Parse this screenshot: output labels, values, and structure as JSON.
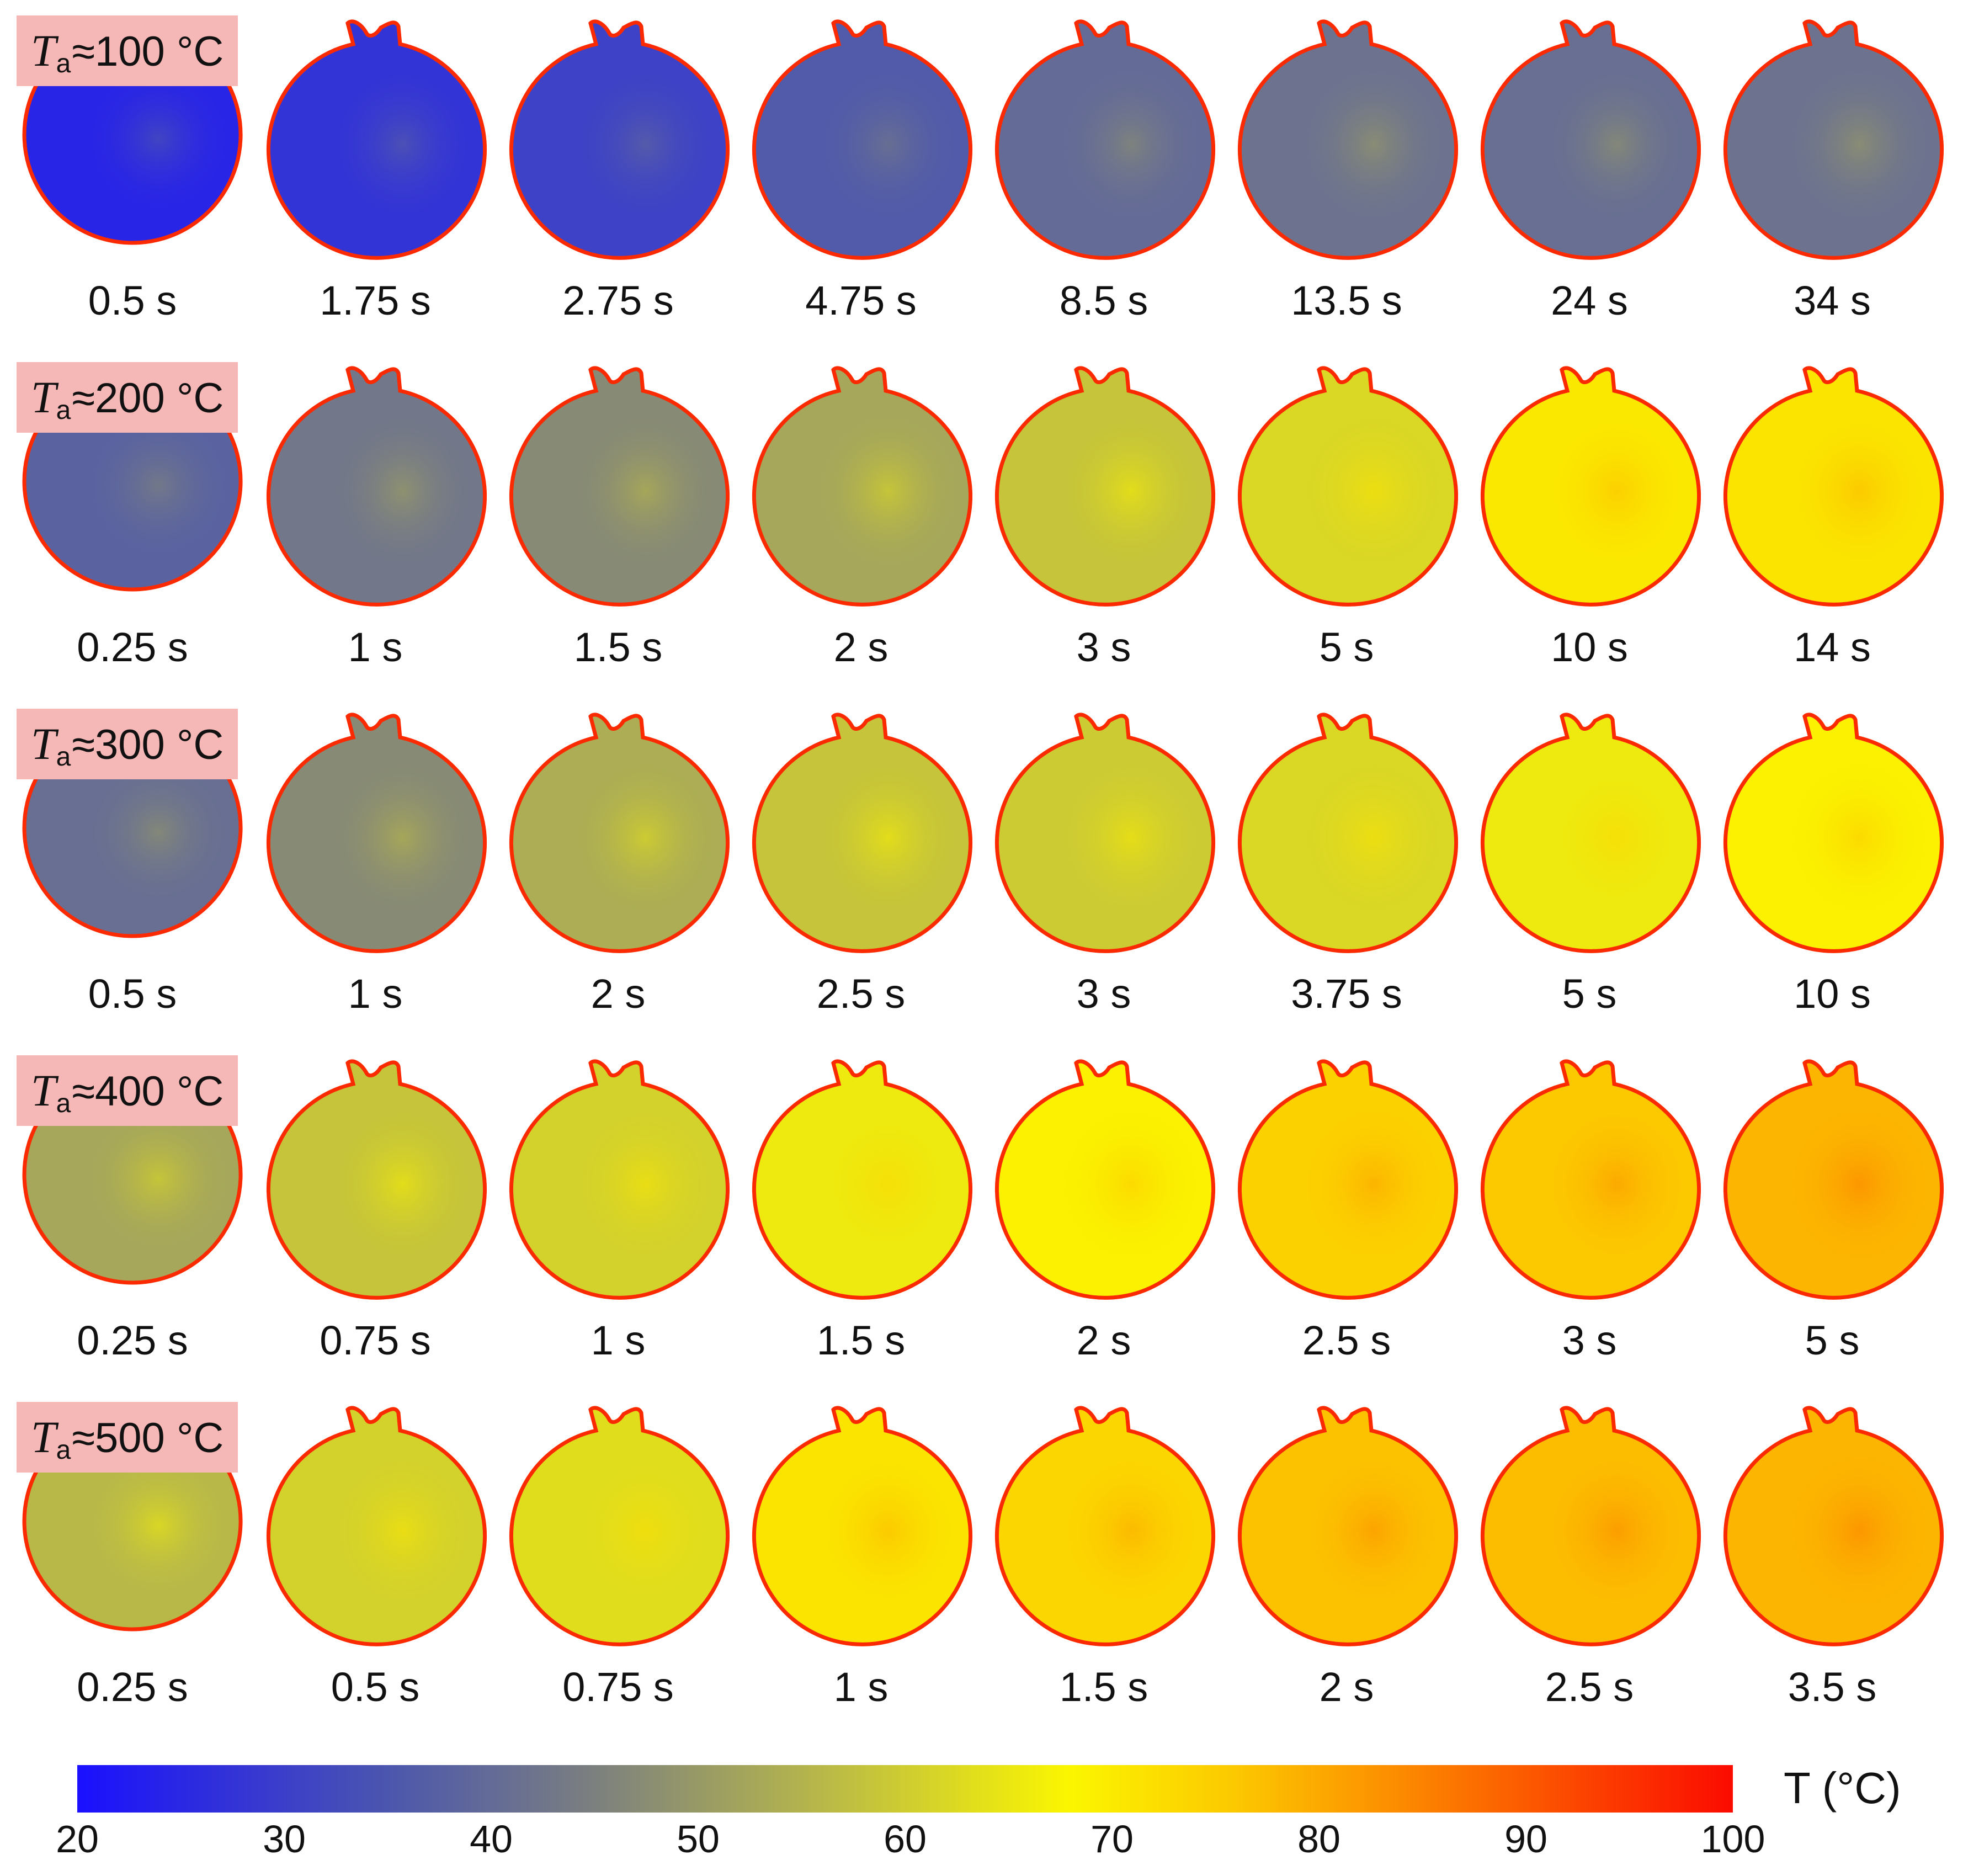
{
  "colors": {
    "c20": "#1a10ff",
    "c30": "#4c57ad",
    "c40": "#7b7f80",
    "c50": "#b8b849",
    "c60": "#fbf600",
    "c70": "#fcc800",
    "c80": "#fc8a00",
    "c90": "#fc4a00",
    "c100": "#fb0b00",
    "label_bg": "#f6b7b7"
  },
  "rows": [
    {
      "label_symbol": "T",
      "label_sub": "a",
      "label_rest": "≈100 °C",
      "frames": [
        {
          "time": "0.5 s",
          "temp": 23
        },
        {
          "time": "1.75 s",
          "temp": 25
        },
        {
          "time": "2.75 s",
          "temp": 27
        },
        {
          "time": "4.75 s",
          "temp": 31
        },
        {
          "time": "8.5 s",
          "temp": 35
        },
        {
          "time": "13.5 s",
          "temp": 37
        },
        {
          "time": "24 s",
          "temp": 36
        },
        {
          "time": "34 s",
          "temp": 37
        }
      ]
    },
    {
      "label_symbol": "T",
      "label_sub": "a",
      "label_rest": "≈200 °C",
      "frames": [
        {
          "time": "0.25 s",
          "temp": 33
        },
        {
          "time": "1 s",
          "temp": 38
        },
        {
          "time": "1.5 s",
          "temp": 42
        },
        {
          "time": "2 s",
          "temp": 47
        },
        {
          "time": "3 s",
          "temp": 52
        },
        {
          "time": "5 s",
          "temp": 55
        },
        {
          "time": "10 s",
          "temp": 63
        },
        {
          "time": "14 s",
          "temp": 64
        }
      ]
    },
    {
      "label_symbol": "T",
      "label_sub": "a",
      "label_rest": "≈300 °C",
      "frames": [
        {
          "time": "0.5 s",
          "temp": 36
        },
        {
          "time": "1 s",
          "temp": 42
        },
        {
          "time": "2 s",
          "temp": 48
        },
        {
          "time": "2.5 s",
          "temp": 52
        },
        {
          "time": "3 s",
          "temp": 53
        },
        {
          "time": "3.75 s",
          "temp": 55
        },
        {
          "time": "5 s",
          "temp": 58
        },
        {
          "time": "10 s",
          "temp": 61
        }
      ]
    },
    {
      "label_symbol": "T",
      "label_sub": "a",
      "label_rest": "≈400 °C",
      "frames": [
        {
          "time": "0.25 s",
          "temp": 47
        },
        {
          "time": "0.75 s",
          "temp": 52
        },
        {
          "time": "1 s",
          "temp": 54
        },
        {
          "time": "1.5 s",
          "temp": 58
        },
        {
          "time": "2 s",
          "temp": 61
        },
        {
          "time": "2.5 s",
          "temp": 68
        },
        {
          "time": "3 s",
          "temp": 70
        },
        {
          "time": "5 s",
          "temp": 73
        }
      ]
    },
    {
      "label_symbol": "T",
      "label_sub": "a",
      "label_rest": "≈500 °C",
      "frames": [
        {
          "time": "0.25 s",
          "temp": 50
        },
        {
          "time": "0.5 s",
          "temp": 54
        },
        {
          "time": "0.75 s",
          "temp": 56
        },
        {
          "time": "1 s",
          "temp": 64
        },
        {
          "time": "1.5 s",
          "temp": 67
        },
        {
          "time": "2 s",
          "temp": 71
        },
        {
          "time": "2.5 s",
          "temp": 72
        },
        {
          "time": "3.5 s",
          "temp": 73
        }
      ]
    }
  ],
  "colorbar": {
    "title": "T (°C)",
    "min": 20,
    "max": 100,
    "ticks": [
      "20",
      "30",
      "40",
      "50",
      "60",
      "70",
      "80",
      "90",
      "100"
    ]
  }
}
